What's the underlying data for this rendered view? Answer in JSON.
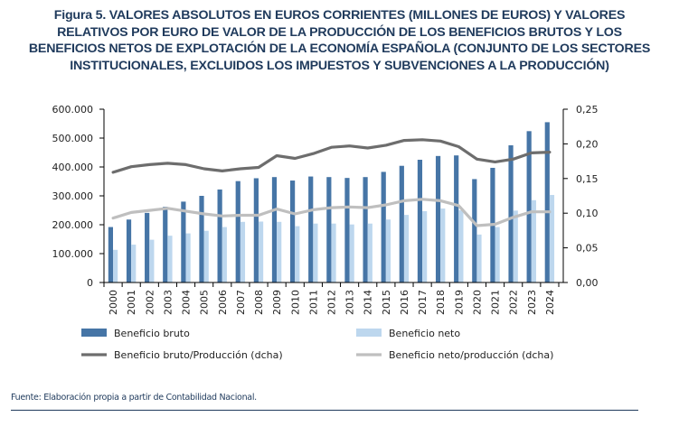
{
  "figure": {
    "title_lines": [
      "Figura 5. VALORES ABSOLUTOS EN EUROS CORRIENTES (MILLONES DE EUROS) Y VALORES",
      "RELATIVOS POR EURO DE VALOR DE LA PRODUCCIÓN DE LOS BENEFICIOS BRUTOS Y LOS",
      "BENEFICIOS NETOS DE EXPLOTACIÓN DE LA ECONOMÍA ESPAÑOLA (CONJUNTO DE LOS SECTORES",
      "INSTITUCIONALES, EXCLUIDOS LOS IMPUESTOS Y SUBVENCIONES A LA PRODUCCIÓN)"
    ],
    "source": "Fuente: Elaboración propia a partir de Contabilidad Nacional."
  },
  "chart_data": {
    "type": "bar",
    "title": "Figura 5. VALORES ABSOLUTOS EN EUROS CORRIENTES (MILLONES DE EUROS) Y VALORES RELATIVOS POR EURO DE VALOR DE LA PRODUCCIÓN DE LOS BENEFICIOS BRUTOS Y LOS BENEFICIOS NETOS DE EXPLOTACIÓN DE LA ECONOMÍA ESPAÑOLA (CONJUNTO DE LOS SECTORES INSTITUCIONALES, EXCLUIDOS LOS IMPUESTOS Y SUBVENCIONES A LA PRODUCCIÓN)",
    "xlabel": "",
    "ylabel": "",
    "categories": [
      "2000",
      "2001",
      "2002",
      "2003",
      "2004",
      "2005",
      "2006",
      "2007",
      "2008",
      "2009",
      "2010",
      "2011",
      "2012",
      "2013",
      "2014",
      "2015",
      "2016",
      "2017",
      "2018",
      "2019",
      "2020",
      "2021",
      "2022",
      "2023",
      "2024"
    ],
    "ylim": [
      0,
      600000
    ],
    "y2lim": [
      0,
      0.25
    ],
    "yticks": [
      "0",
      "100.000",
      "200.000",
      "300.000",
      "400.000",
      "500.000",
      "600.000"
    ],
    "y2ticks": [
      "0,00",
      "0,05",
      "0,10",
      "0,15",
      "0,20",
      "0,25"
    ],
    "grid": false,
    "legend_position": "bottom",
    "series": [
      {
        "name": "Beneficio bruto",
        "type": "bar",
        "axis": "left",
        "color": "#4675a6",
        "values": [
          192000,
          218000,
          241000,
          262000,
          280000,
          300000,
          322000,
          351000,
          361000,
          365000,
          353000,
          367000,
          365000,
          362000,
          365000,
          383000,
          404000,
          425000,
          438000,
          440000,
          358000,
          397000,
          475000,
          524000,
          555000
        ]
      },
      {
        "name": "Beneficio neto",
        "type": "bar",
        "axis": "left",
        "color": "#bdd7ee",
        "values": [
          113000,
          131000,
          148000,
          162000,
          170000,
          179000,
          192000,
          210000,
          211000,
          210000,
          195000,
          204000,
          204000,
          201000,
          204000,
          218000,
          234000,
          247000,
          256000,
          250000,
          166000,
          192000,
          249000,
          285000,
          303000
        ]
      },
      {
        "name": "Beneficio bruto/Producción (dcha)",
        "type": "line",
        "axis": "right",
        "color": "#6d6d6d",
        "values": [
          0.159,
          0.167,
          0.17,
          0.172,
          0.17,
          0.164,
          0.161,
          0.164,
          0.166,
          0.183,
          0.179,
          0.186,
          0.195,
          0.197,
          0.194,
          0.198,
          0.205,
          0.206,
          0.204,
          0.196,
          0.178,
          0.174,
          0.178,
          0.187,
          0.188
        ]
      },
      {
        "name": "Beneficio neto/producción (dcha)",
        "type": "line",
        "axis": "right",
        "color": "#bfbfbf",
        "values": [
          0.093,
          0.101,
          0.104,
          0.107,
          0.103,
          0.099,
          0.096,
          0.097,
          0.097,
          0.106,
          0.099,
          0.105,
          0.108,
          0.109,
          0.108,
          0.112,
          0.118,
          0.12,
          0.118,
          0.111,
          0.082,
          0.084,
          0.094,
          0.102,
          0.102
        ]
      }
    ]
  }
}
